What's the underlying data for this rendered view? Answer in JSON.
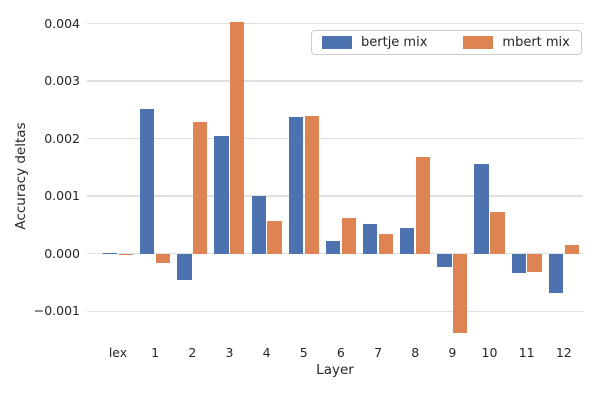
{
  "chart_data": {
    "type": "bar",
    "title": "",
    "xlabel": "Layer",
    "ylabel": "Accuracy deltas",
    "categories": [
      "lex",
      "1",
      "2",
      "3",
      "4",
      "5",
      "6",
      "7",
      "8",
      "9",
      "10",
      "11",
      "12"
    ],
    "series": [
      {
        "name": "bertje mix",
        "color": "#4C72B0",
        "values": [
          1e-05,
          0.00251,
          -0.00046,
          0.00205,
          0.00101,
          0.00237,
          0.00022,
          0.00051,
          0.00045,
          -0.00023,
          0.00155,
          -0.00034,
          -0.00068
        ]
      },
      {
        "name": "mbert mix",
        "color": "#DD8452",
        "values": [
          -2e-05,
          -0.00016,
          0.00229,
          0.00403,
          0.00057,
          0.00239,
          0.00062,
          0.00034,
          0.00168,
          -0.00138,
          0.00072,
          -0.00031,
          0.00015
        ]
      }
    ],
    "ylim": [
      -0.0015,
      0.0042
    ],
    "yticks": [
      {
        "value": -0.001,
        "label": "−0.001"
      },
      {
        "value": 0.0,
        "label": "0.000"
      },
      {
        "value": 0.001,
        "label": "0.001"
      },
      {
        "value": 0.002,
        "label": "0.002"
      },
      {
        "value": 0.003,
        "label": "0.003"
      },
      {
        "value": 0.004,
        "label": "0.004"
      }
    ],
    "grid": true,
    "legend_position": "upper right",
    "colors": {
      "background": "#ffffff",
      "grid": "#e0e0e0",
      "text": "#262626",
      "legend_border": "#cccccc"
    }
  }
}
